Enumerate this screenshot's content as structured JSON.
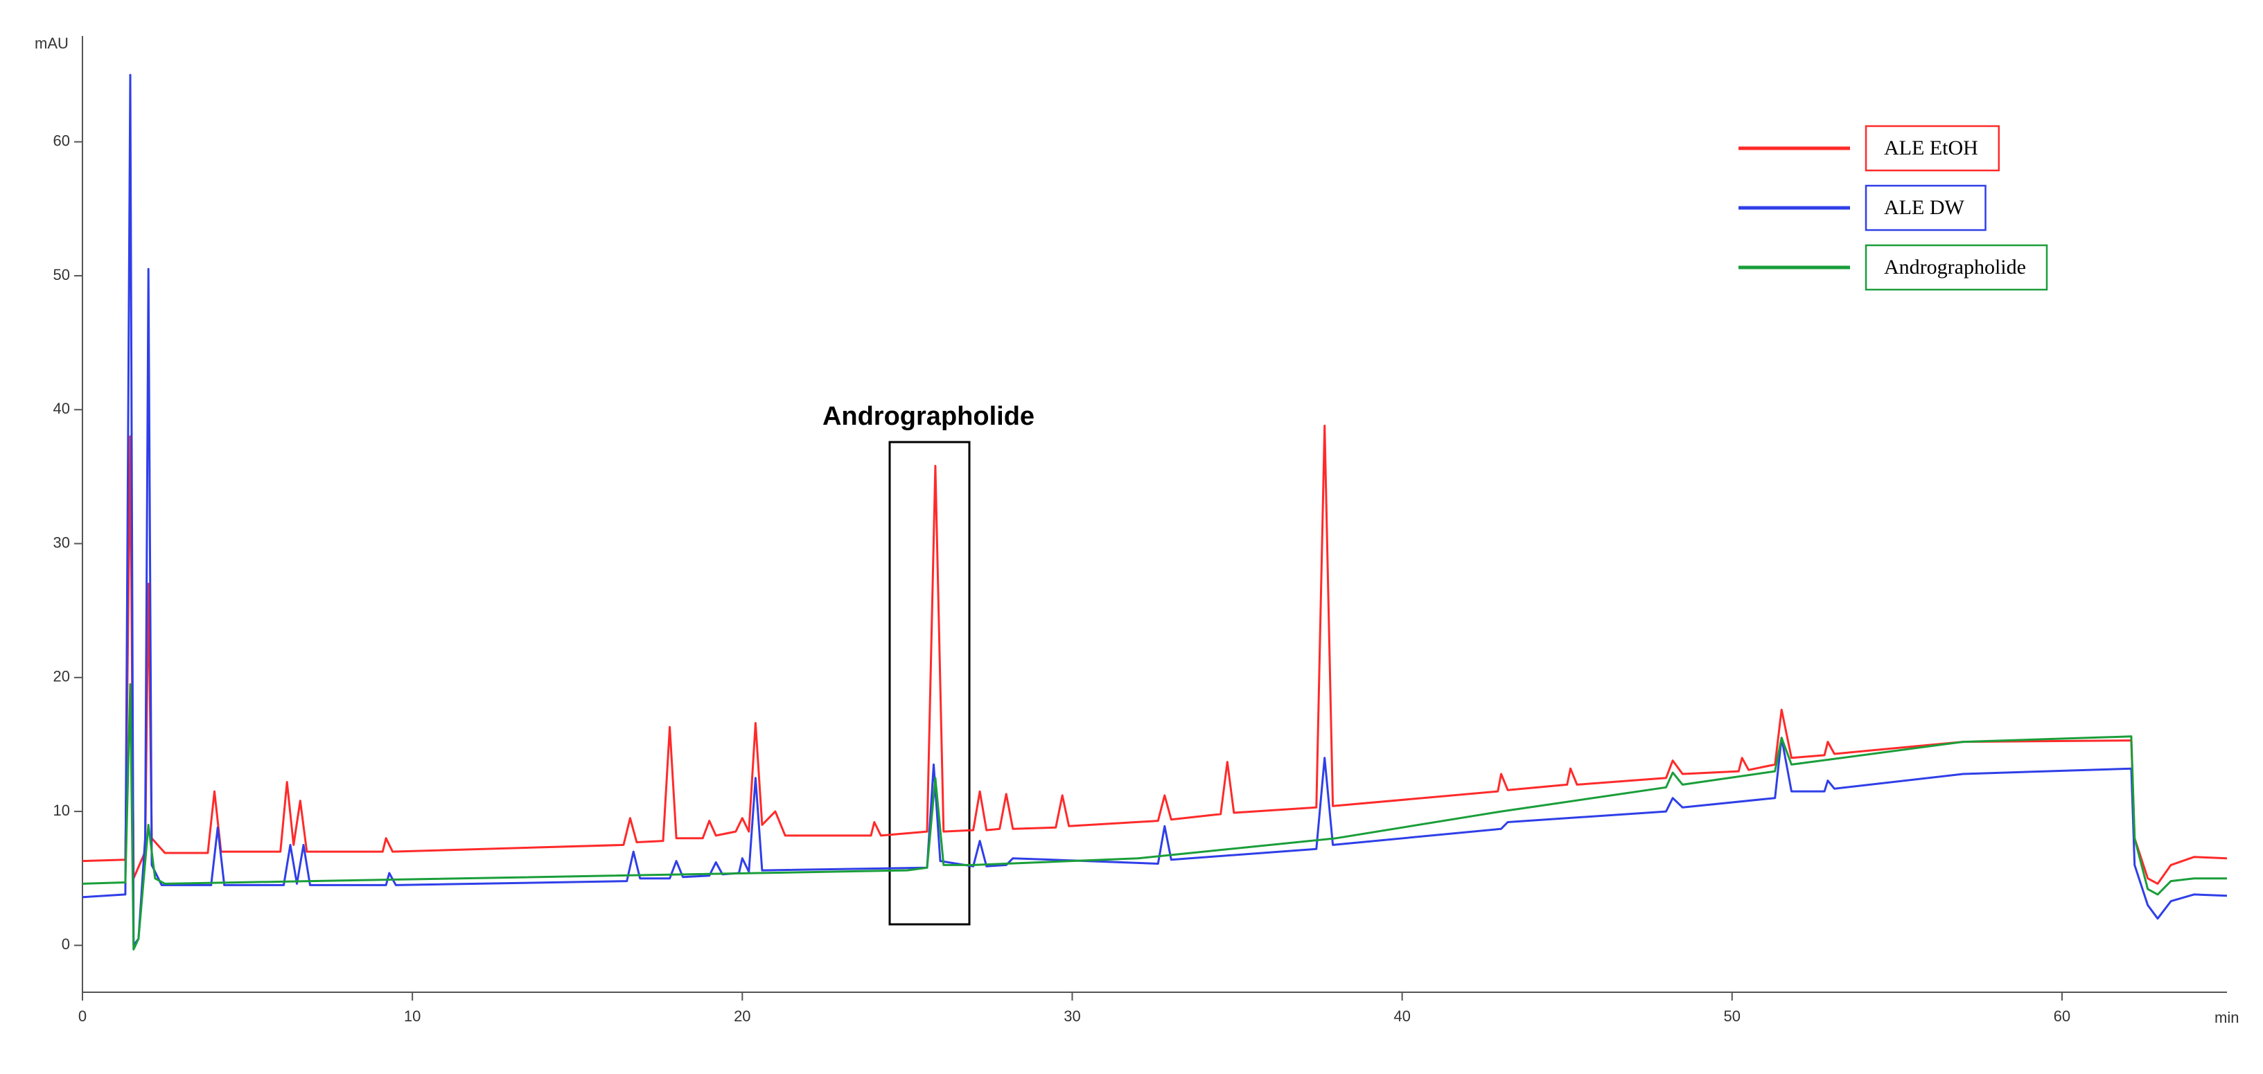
{
  "chart_data": {
    "type": "line",
    "x_label": "min",
    "y_label": "mAU",
    "annotation": "Andrographolide",
    "xlim": [
      0,
      65
    ],
    "ylim": [
      -3.5,
      67.9
    ],
    "xticks": [
      0,
      10,
      20,
      30,
      40,
      50,
      60
    ],
    "yticks": [
      0,
      10,
      20,
      30,
      40,
      50,
      60
    ],
    "grid": false,
    "legend": "upper right",
    "series": [
      {
        "name": "ALE EtOH",
        "color": "#ff2a2a",
        "x": [
          0,
          1.3,
          1.45,
          1.55,
          1.9,
          2.0,
          2.1,
          2.5,
          3.8,
          4.0,
          4.2,
          6.0,
          6.2,
          6.4,
          6.6,
          6.8,
          9.1,
          9.2,
          9.4,
          16.4,
          16.6,
          16.8,
          17.6,
          17.8,
          18.0,
          18.8,
          19.0,
          19.2,
          19.8,
          20.0,
          20.2,
          20.4,
          20.6,
          21.0,
          21.3,
          23.9,
          24.0,
          24.2,
          25.6,
          25.85,
          26.1,
          27.0,
          27.2,
          27.4,
          27.8,
          28.0,
          28.2,
          29.5,
          29.7,
          29.9,
          32.6,
          32.8,
          33.0,
          34.5,
          34.7,
          34.9,
          37.4,
          37.65,
          37.9,
          42.9,
          43.0,
          43.2,
          45.0,
          45.1,
          45.3,
          48.0,
          48.2,
          48.5,
          50.2,
          50.3,
          50.5,
          51.3,
          51.5,
          51.8,
          52.8,
          52.9,
          53.1,
          57,
          62.1,
          62.2,
          62.6,
          62.9,
          63.3,
          64,
          65
        ],
        "values": [
          6.3,
          6.4,
          38,
          5,
          7,
          27,
          8,
          6.9,
          6.9,
          11.5,
          7,
          7,
          12.2,
          7.5,
          10.8,
          7,
          7,
          8,
          7,
          7.5,
          9.5,
          7.7,
          7.8,
          16.3,
          8,
          8,
          9.3,
          8.2,
          8.5,
          9.5,
          8.5,
          16.6,
          9,
          10,
          8.2,
          8.2,
          9.2,
          8.2,
          8.5,
          35.8,
          8.5,
          8.6,
          11.5,
          8.6,
          8.7,
          11.3,
          8.7,
          8.8,
          11.2,
          8.9,
          9.3,
          11.2,
          9.4,
          9.8,
          13.7,
          9.9,
          10.3,
          38.8,
          10.4,
          11.5,
          12.8,
          11.6,
          12,
          13.2,
          12,
          12.5,
          13.8,
          12.8,
          13,
          14,
          13.1,
          13.5,
          17.6,
          14,
          14.2,
          15.2,
          14.3,
          15.2,
          15.3,
          8,
          5,
          4.6,
          6,
          6.6,
          6.5
        ]
      },
      {
        "name": "ALE DW",
        "color": "#2f3fe8",
        "x": [
          0,
          1.3,
          1.45,
          1.55,
          1.7,
          1.9,
          2.0,
          2.1,
          2.4,
          3.9,
          4.1,
          4.3,
          6.1,
          6.3,
          6.5,
          6.7,
          6.9,
          9.2,
          9.3,
          9.5,
          16.5,
          16.7,
          16.9,
          17.8,
          18.0,
          18.2,
          19.0,
          19.2,
          19.4,
          19.9,
          20.0,
          20.2,
          20.4,
          20.6,
          25.6,
          25.8,
          26.0,
          27.0,
          27.2,
          27.4,
          28.0,
          28.2,
          32.6,
          32.8,
          33.0,
          37.4,
          37.65,
          37.9,
          43.0,
          43.2,
          48.0,
          48.2,
          48.5,
          51.3,
          51.5,
          51.8,
          52.8,
          52.9,
          53.1,
          57,
          62.1,
          62.2,
          62.6,
          62.9,
          63.3,
          64,
          65
        ],
        "values": [
          3.6,
          3.8,
          65,
          0,
          0.5,
          8,
          50.5,
          6,
          4.5,
          4.5,
          8.8,
          4.5,
          4.5,
          7.5,
          4.6,
          7.5,
          4.5,
          4.5,
          5.4,
          4.5,
          4.8,
          7,
          5,
          5,
          6.3,
          5.1,
          5.2,
          6.2,
          5.3,
          5.4,
          6.5,
          5.5,
          12.5,
          5.6,
          5.8,
          13.5,
          6.3,
          5.9,
          7.8,
          5.9,
          6,
          6.5,
          6.1,
          8.9,
          6.4,
          7.2,
          14,
          7.5,
          8.7,
          9.2,
          10,
          11,
          10.3,
          11,
          15.5,
          11.5,
          11.5,
          12.3,
          11.7,
          12.8,
          13.2,
          6,
          3,
          2,
          3.3,
          3.8,
          3.7
        ]
      },
      {
        "name": "Andrographolide",
        "color": "#1a9e3a",
        "x": [
          0,
          1.3,
          1.45,
          1.55,
          1.7,
          2.0,
          2.2,
          2.5,
          25,
          25.6,
          25.85,
          26.1,
          27,
          32,
          38,
          43,
          48,
          48.2,
          48.5,
          51.3,
          51.5,
          51.8,
          57,
          62.1,
          62.2,
          62.6,
          62.9,
          63.3,
          64,
          65
        ],
        "values": [
          4.6,
          4.7,
          19.5,
          -0.3,
          0.5,
          9,
          5,
          4.6,
          5.6,
          5.8,
          12.5,
          6,
          6,
          6.5,
          8,
          10,
          11.8,
          12.9,
          12,
          13,
          15.5,
          13.5,
          15.2,
          15.6,
          8,
          4.2,
          3.8,
          4.8,
          5,
          5
        ]
      }
    ]
  }
}
